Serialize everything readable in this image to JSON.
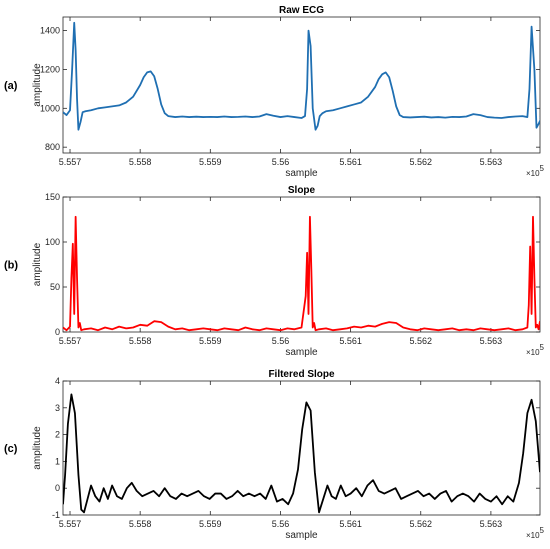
{
  "chart_data": [
    {
      "type": "line",
      "panel_label": "(a)",
      "title": "Raw ECG",
      "xlabel": "sample",
      "ylabel": "amplitude",
      "x_multiplier": "×10",
      "x_multiplier_exp": "5",
      "xlim": [
        5.5569,
        5.5637
      ],
      "ylim": [
        770,
        1470
      ],
      "xticks": [
        5.557,
        5.558,
        5.559,
        5.56,
        5.561,
        5.562,
        5.563
      ],
      "xtick_labels": [
        "5.557",
        "5.558",
        "5.559",
        "5.56",
        "5.561",
        "5.562",
        "5.563"
      ],
      "yticks": [
        800,
        1000,
        1200,
        1400
      ],
      "ytick_labels": [
        "800",
        "1000",
        "1200",
        "1400"
      ],
      "color": "#1f6fb2",
      "series": [
        {
          "x": [
            5.5569,
            5.55695,
            5.557,
            5.55703,
            5.55706,
            5.55708,
            5.5571,
            5.55712,
            5.55715,
            5.55718,
            5.55722,
            5.5573,
            5.5574,
            5.5575,
            5.5576,
            5.5577,
            5.5578,
            5.5579,
            5.558,
            5.55805,
            5.5581,
            5.55815,
            5.5582,
            5.55825,
            5.5583,
            5.55835,
            5.5584,
            5.5585,
            5.5586,
            5.5587,
            5.5588,
            5.5589,
            5.559,
            5.5591,
            5.5592,
            5.5593,
            5.5594,
            5.5595,
            5.5596,
            5.5597,
            5.5598,
            5.5599,
            5.56,
            5.5601,
            5.5602,
            5.5603,
            5.56035,
            5.56038,
            5.5604,
            5.56043,
            5.56046,
            5.5605,
            5.56053,
            5.56056,
            5.5606,
            5.56065,
            5.56075,
            5.56085,
            5.56095,
            5.56105,
            5.56115,
            5.56125,
            5.56135,
            5.5614,
            5.56145,
            5.5615,
            5.56155,
            5.5616,
            5.56165,
            5.5617,
            5.56175,
            5.56185,
            5.56195,
            5.56205,
            5.56215,
            5.56225,
            5.56235,
            5.56245,
            5.56255,
            5.56265,
            5.56275,
            5.56285,
            5.56295,
            5.56305,
            5.56315,
            5.56325,
            5.56335,
            5.56345,
            5.56352,
            5.56355,
            5.56358,
            5.56362,
            5.56365,
            5.56368,
            5.56372,
            5.5637
          ],
          "y": [
            980,
            965,
            990,
            1200,
            1440,
            1300,
            1050,
            890,
            930,
            980,
            985,
            990,
            1000,
            1005,
            1010,
            1015,
            1030,
            1060,
            1120,
            1160,
            1185,
            1190,
            1165,
            1100,
            1020,
            975,
            960,
            955,
            958,
            955,
            957,
            955,
            956,
            955,
            958,
            955,
            956,
            958,
            955,
            958,
            970,
            962,
            955,
            960,
            955,
            950,
            960,
            1100,
            1400,
            1320,
            1000,
            890,
            910,
            960,
            975,
            985,
            990,
            1000,
            1010,
            1020,
            1030,
            1060,
            1110,
            1150,
            1175,
            1185,
            1160,
            1090,
            1010,
            965,
            955,
            953,
            955,
            957,
            953,
            955,
            952,
            956,
            955,
            958,
            970,
            965,
            955,
            952,
            950,
            955,
            958,
            960,
            955,
            1100,
            1420,
            1200,
            900,
            920,
            950,
            960
          ]
        }
      ]
    },
    {
      "type": "line",
      "panel_label": "(b)",
      "title": "Slope",
      "xlabel": "sample",
      "ylabel": "amplitude",
      "x_multiplier": "×10",
      "x_multiplier_exp": "5",
      "xlim": [
        5.5569,
        5.5637
      ],
      "ylim": [
        0,
        150
      ],
      "xticks": [
        5.557,
        5.558,
        5.559,
        5.56,
        5.561,
        5.562,
        5.563
      ],
      "xtick_labels": [
        "5.557",
        "5.558",
        "5.559",
        "5.56",
        "5.561",
        "5.562",
        "5.563"
      ],
      "yticks": [
        0,
        50,
        100,
        150
      ],
      "ytick_labels": [
        "0",
        "50",
        "100",
        "150"
      ],
      "color": "#ff0000",
      "series": [
        {
          "x": [
            5.5569,
            5.55695,
            5.557,
            5.55702,
            5.55704,
            5.55706,
            5.55708,
            5.5571,
            5.55712,
            5.55714,
            5.55716,
            5.5572,
            5.5573,
            5.5574,
            5.5575,
            5.5576,
            5.5577,
            5.5578,
            5.5579,
            5.558,
            5.5581,
            5.5582,
            5.5583,
            5.5584,
            5.5585,
            5.5586,
            5.5587,
            5.5588,
            5.5589,
            5.559,
            5.5591,
            5.5592,
            5.5593,
            5.5594,
            5.5595,
            5.5596,
            5.5597,
            5.5598,
            5.5599,
            5.56,
            5.5601,
            5.5602,
            5.5603,
            5.56036,
            5.56038,
            5.5604,
            5.56042,
            5.56044,
            5.56046,
            5.56048,
            5.5605,
            5.56055,
            5.56065,
            5.56075,
            5.56085,
            5.56095,
            5.56105,
            5.56115,
            5.56125,
            5.56135,
            5.56145,
            5.56155,
            5.56165,
            5.56175,
            5.56185,
            5.56195,
            5.56205,
            5.56215,
            5.56225,
            5.56235,
            5.56245,
            5.56255,
            5.56265,
            5.56275,
            5.56285,
            5.56295,
            5.56305,
            5.56315,
            5.56325,
            5.56335,
            5.56345,
            5.56352,
            5.56354,
            5.56356,
            5.56358,
            5.5636,
            5.56362,
            5.56364,
            5.56366,
            5.56368,
            5.5637
          ],
          "y": [
            5,
            2,
            6,
            60,
            98,
            20,
            128,
            60,
            5,
            10,
            2,
            3,
            4,
            2,
            5,
            3,
            6,
            4,
            5,
            8,
            7,
            12,
            11,
            6,
            3,
            4,
            2,
            3,
            4,
            3,
            2,
            4,
            3,
            2,
            5,
            3,
            2,
            4,
            3,
            2,
            4,
            3,
            5,
            40,
            88,
            20,
            128,
            70,
            5,
            10,
            2,
            3,
            4,
            2,
            3,
            4,
            6,
            5,
            7,
            6,
            9,
            11,
            10,
            5,
            3,
            2,
            4,
            3,
            2,
            3,
            4,
            2,
            3,
            2,
            4,
            3,
            2,
            3,
            4,
            2,
            3,
            5,
            30,
            95,
            20,
            128,
            60,
            5,
            8,
            3,
            12
          ]
        }
      ]
    },
    {
      "type": "line",
      "panel_label": "(c)",
      "title": "Filtered Slope",
      "xlabel": "sample",
      "ylabel": "amplitude",
      "x_multiplier": "×10",
      "x_multiplier_exp": "5",
      "xlim": [
        5.5569,
        5.5637
      ],
      "ylim": [
        -1,
        4
      ],
      "xticks": [
        5.557,
        5.558,
        5.559,
        5.56,
        5.561,
        5.562,
        5.563
      ],
      "xtick_labels": [
        "5.557",
        "5.558",
        "5.559",
        "5.56",
        "5.561",
        "5.562",
        "5.563"
      ],
      "yticks": [
        -1,
        0,
        1,
        2,
        3,
        4
      ],
      "ytick_labels": [
        "-1",
        "0",
        "1",
        "2",
        "3",
        "4"
      ],
      "color": "#000000",
      "series": [
        {
          "x": [
            5.5569,
            5.55693,
            5.55697,
            5.55702,
            5.55707,
            5.55712,
            5.55716,
            5.5572,
            5.55725,
            5.5573,
            5.55736,
            5.55742,
            5.55748,
            5.55754,
            5.5576,
            5.55767,
            5.55774,
            5.55781,
            5.55788,
            5.55795,
            5.55803,
            5.55811,
            5.55819,
            5.55827,
            5.55835,
            5.55843,
            5.55851,
            5.55859,
            5.55867,
            5.55875,
            5.55883,
            5.55891,
            5.55899,
            5.55907,
            5.55915,
            5.55923,
            5.55931,
            5.55939,
            5.55947,
            5.55955,
            5.55963,
            5.55971,
            5.55979,
            5.55987,
            5.55995,
            5.56003,
            5.56011,
            5.56018,
            5.56025,
            5.56031,
            5.56037,
            5.56043,
            5.56049,
            5.56055,
            5.56061,
            5.56067,
            5.56073,
            5.56079,
            5.56086,
            5.56093,
            5.561,
            5.56108,
            5.56116,
            5.56124,
            5.56132,
            5.5614,
            5.56148,
            5.56156,
            5.56164,
            5.56172,
            5.5618,
            5.56188,
            5.56196,
            5.56204,
            5.56212,
            5.5622,
            5.56228,
            5.56236,
            5.56244,
            5.56252,
            5.5626,
            5.56268,
            5.56276,
            5.56284,
            5.56292,
            5.563,
            5.56308,
            5.56316,
            5.56324,
            5.56332,
            5.5634,
            5.56346,
            5.56352,
            5.56358,
            5.56364,
            5.5637
          ],
          "y": [
            -0.6,
            0.5,
            2.4,
            3.5,
            2.8,
            0.5,
            -0.8,
            -0.9,
            -0.4,
            0.1,
            -0.3,
            -0.5,
            0.0,
            -0.4,
            0.1,
            -0.3,
            -0.4,
            0.0,
            0.2,
            -0.1,
            -0.3,
            -0.2,
            -0.1,
            -0.3,
            0.0,
            -0.3,
            -0.4,
            -0.2,
            -0.3,
            -0.2,
            -0.1,
            -0.3,
            -0.4,
            -0.2,
            -0.2,
            -0.4,
            -0.3,
            -0.1,
            -0.3,
            -0.2,
            -0.3,
            -0.2,
            -0.4,
            0.1,
            -0.5,
            -0.4,
            -0.6,
            -0.2,
            0.7,
            2.2,
            3.2,
            2.9,
            0.6,
            -0.9,
            -0.4,
            0.1,
            -0.3,
            -0.4,
            0.1,
            -0.3,
            -0.2,
            0.0,
            -0.3,
            0.1,
            0.3,
            -0.1,
            -0.2,
            -0.1,
            0.0,
            -0.4,
            -0.3,
            -0.2,
            -0.1,
            -0.3,
            -0.2,
            -0.4,
            -0.2,
            -0.1,
            -0.5,
            -0.3,
            -0.2,
            -0.3,
            -0.5,
            -0.2,
            -0.4,
            -0.5,
            -0.3,
            -0.6,
            -0.3,
            -0.5,
            0.2,
            1.3,
            2.8,
            3.3,
            2.5,
            0.6
          ]
        }
      ]
    }
  ]
}
